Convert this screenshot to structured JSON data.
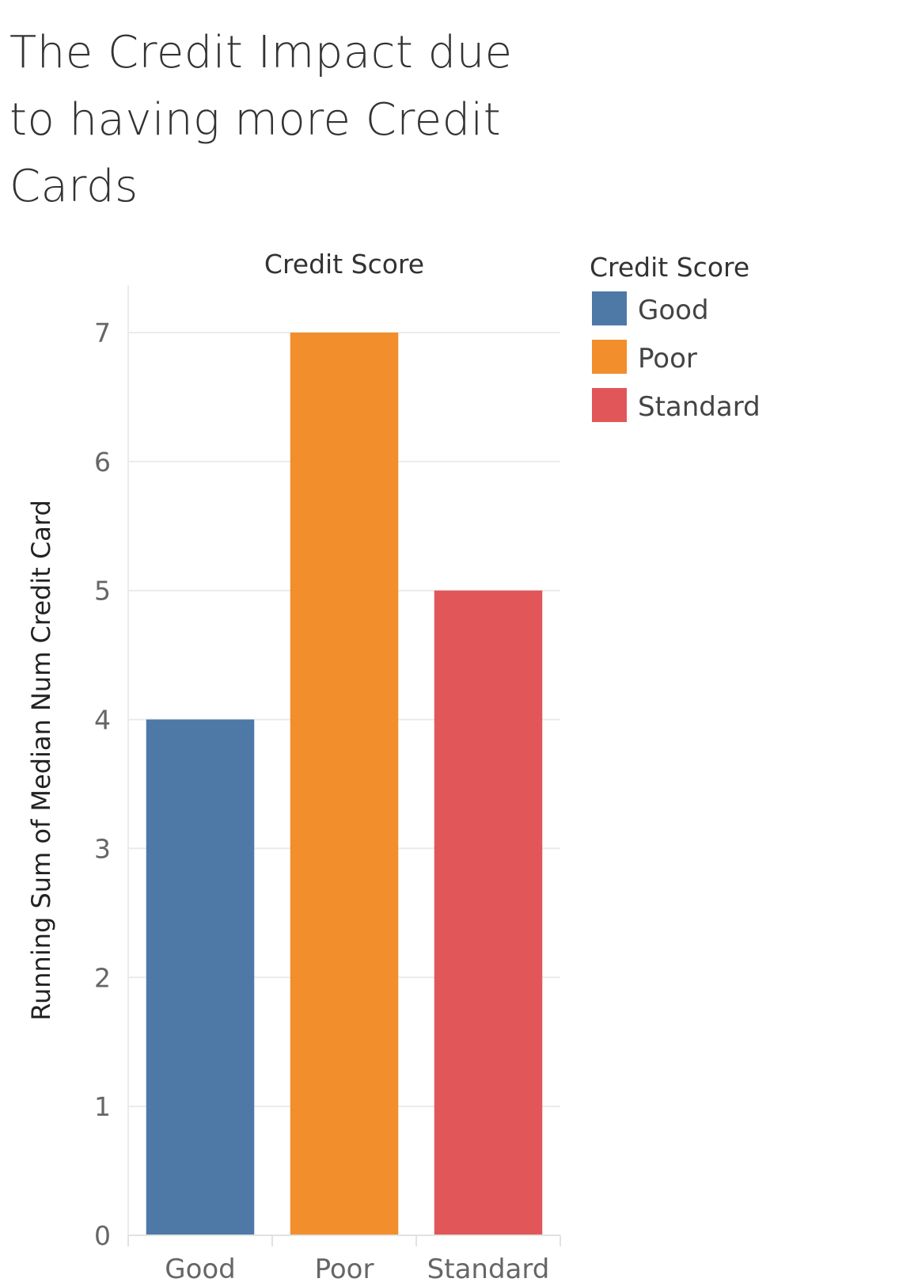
{
  "chart_data": {
    "type": "bar",
    "title_lines": [
      "The Credit Impact due",
      "to having more Credit",
      "Cards"
    ],
    "column_header": "Credit Score",
    "ylabel": "Running Sum of Median Num Credit Card",
    "categories": [
      "Good",
      "Poor",
      "Standard"
    ],
    "values": [
      4,
      7,
      5
    ],
    "colors": [
      "#4e79a7",
      "#f28e2b",
      "#e15759"
    ],
    "ylim": [
      0,
      7
    ],
    "yticks": [
      "0",
      "1",
      "2",
      "3",
      "4",
      "5",
      "6",
      "7"
    ],
    "grid": true,
    "legend": {
      "title": "Credit Score",
      "placement": "top-right",
      "items": [
        {
          "label": "Good",
          "color": "#4e79a7"
        },
        {
          "label": "Poor",
          "color": "#f28e2b"
        },
        {
          "label": "Standard",
          "color": "#e15759"
        }
      ]
    }
  }
}
